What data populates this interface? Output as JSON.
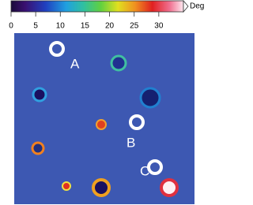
{
  "chart_data": {
    "type": "image",
    "colorbar": {
      "label": "Deg",
      "xlim": [
        0,
        35
      ],
      "xticks": [
        0,
        5,
        10,
        15,
        20,
        25,
        30
      ]
    },
    "annotations": [
      "A",
      "B",
      "C"
    ]
  }
}
